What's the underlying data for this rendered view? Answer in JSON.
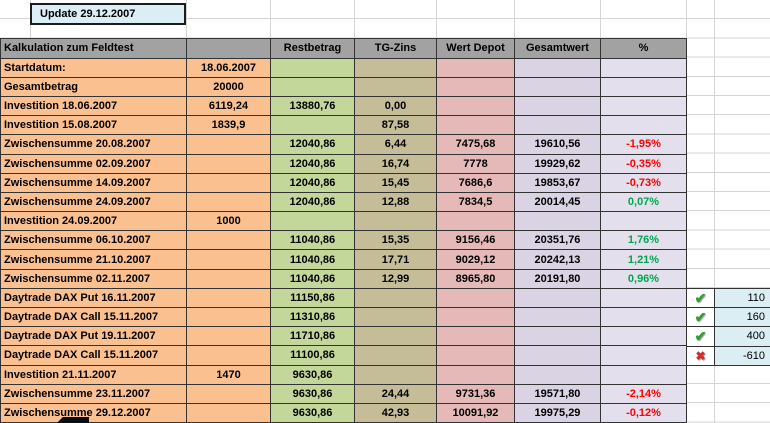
{
  "update_box": {
    "text": "Update 29.12.2007"
  },
  "header": {
    "title": "Kalkulation zum Feldtest",
    "columns": [
      "",
      "Restbetrag",
      "TG-Zins",
      "Wert Depot",
      "Gesamtwert",
      "%"
    ]
  },
  "rows": [
    {
      "label": "Startdatum:",
      "invest": "18.06.2007"
    },
    {
      "label": "Gesamtbetrag",
      "invest": "20000"
    },
    {
      "label": "Investition 18.06.2007",
      "invest": "6119,24",
      "rest": "13880,76",
      "zins": "0,00"
    },
    {
      "label": "Investition 15.08.2007",
      "invest": "1839,9",
      "zins": "87,58"
    },
    {
      "label": "Zwischensumme 20.08.2007",
      "rest": "12040,86",
      "zins": "6,44",
      "depot": "7475,68",
      "gesamt": "19610,56",
      "pct": "-1,95%"
    },
    {
      "label": "Zwischensumme 02.09.2007",
      "rest": "12040,86",
      "zins": "16,74",
      "depot": "7778",
      "gesamt": "19929,62",
      "pct": "-0,35%"
    },
    {
      "label": "Zwischensumme 14.09.2007",
      "rest": "12040,86",
      "zins": "15,45",
      "depot": "7686,6",
      "gesamt": "19853,67",
      "pct": "-0,73%"
    },
    {
      "label": "Zwischensumme 24.09.2007",
      "rest": "12040,86",
      "zins": "12,88",
      "depot": "7834,5",
      "gesamt": "20014,45",
      "pct": "0,07%"
    },
    {
      "label": "Investition 24.09.2007",
      "invest": "1000"
    },
    {
      "label": "Zwischensumme 06.10.2007",
      "rest": "11040,86",
      "zins": "15,35",
      "depot": "9156,46",
      "gesamt": "20351,76",
      "pct": "1,76%"
    },
    {
      "label": "Zwischensumme 21.10.2007",
      "rest": "11040,86",
      "zins": "17,71",
      "depot": "9029,12",
      "gesamt": "20242,13",
      "pct": "1,21%"
    },
    {
      "label": "Zwischensumme 02.11.2007",
      "rest": "11040,86",
      "zins": "12,99",
      "depot": "8965,80",
      "gesamt": "20191,80",
      "pct": "0,96%"
    },
    {
      "label": "Daytrade DAX Put 16.11.2007",
      "rest": "11150,86",
      "check": "yes",
      "result": "110"
    },
    {
      "label": "Daytrade DAX Call 15.11.2007",
      "rest": "11310,86",
      "check": "yes",
      "result": "160"
    },
    {
      "label": "Daytrade DAX Put 19.11.2007",
      "rest": "11710,86",
      "check": "yes",
      "result": "400"
    },
    {
      "label": "Daytrade DAX Call 15.11.2007",
      "rest": "11100,86",
      "check": "no",
      "result": "-610"
    },
    {
      "label": "Investition 21.11.2007",
      "invest": "1470",
      "rest": "9630,86"
    },
    {
      "label": "Zwischensumme 23.11.2007",
      "rest": "9630,86",
      "zins": "24,44",
      "depot": "9731,36",
      "gesamt": "19571,80",
      "pct": "-2,14%"
    },
    {
      "label": "Zwischensumme 29.12.2007",
      "rest": "9630,86",
      "zins": "42,93",
      "depot": "10091,92",
      "gesamt": "19975,29",
      "pct": "-0,12%"
    }
  ],
  "icons": {
    "check": "✔",
    "cross": "✖"
  },
  "colors": {
    "label_bg": "#FAC090",
    "rest_bg": "#C4D79B",
    "zins_bg": "#C4BD97",
    "depot_bg": "#E5B9B7",
    "gesamt_bg": "#D9D3E3",
    "pct_bg": "#E4DFEC",
    "header_bg": "#A2A2A2",
    "side_bg": "#DAEEF3",
    "check_bg": "#FFFFFF",
    "update_bg": "#DBEEF6",
    "border_dark": "#333333",
    "gridline": "#D4D4D4",
    "pct_neg": "#FF0000",
    "pct_pos": "#00A550",
    "check_color": "#2DA02D",
    "cross_color": "#D42A2A"
  }
}
